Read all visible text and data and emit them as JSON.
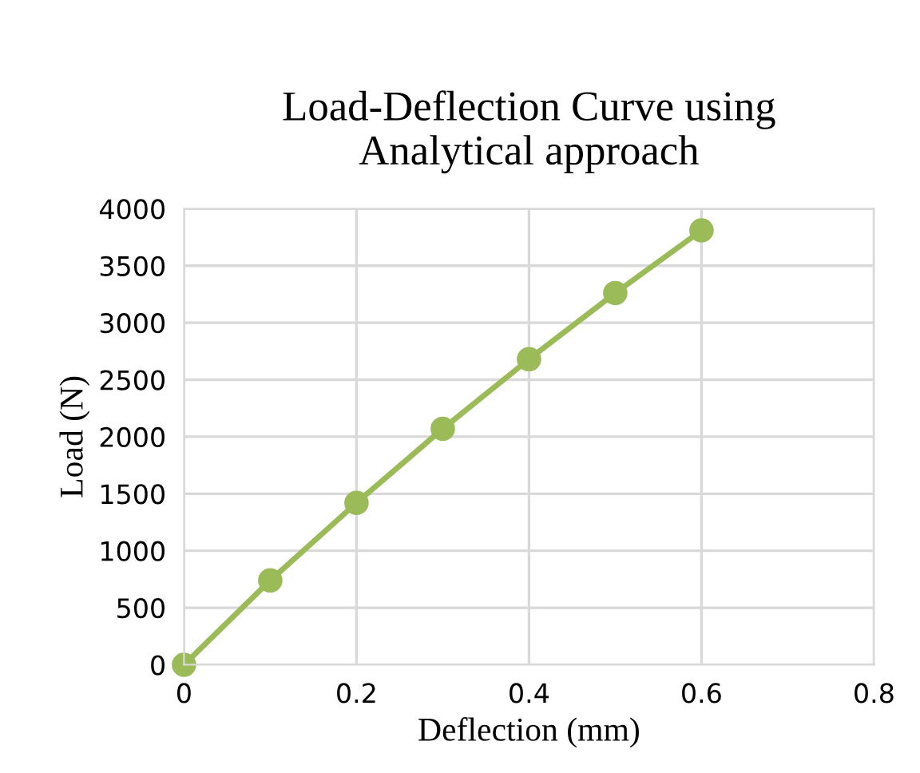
{
  "chart_data": {
    "type": "line",
    "title": "Load-Deflection Curve using\nAnalytical approach",
    "xlabel": "Deflection (mm)",
    "ylabel": "Load (N)",
    "x": [
      0,
      0.1,
      0.2,
      0.3,
      0.4,
      0.5,
      0.6
    ],
    "series": [
      {
        "color": "#9bbb59",
        "values": [
          0,
          740,
          1420,
          2070,
          2680,
          3260,
          3810
        ]
      }
    ],
    "xlim": [
      0,
      0.8
    ],
    "xticks": [
      0,
      0.2,
      0.4,
      0.6,
      0.8
    ],
    "ylim": [
      0,
      4000
    ],
    "yticks": [
      0,
      500,
      1000,
      1500,
      2000,
      2500,
      3000,
      3500,
      4000
    ],
    "grid": true,
    "marker": "circle",
    "line_style": "solid"
  }
}
